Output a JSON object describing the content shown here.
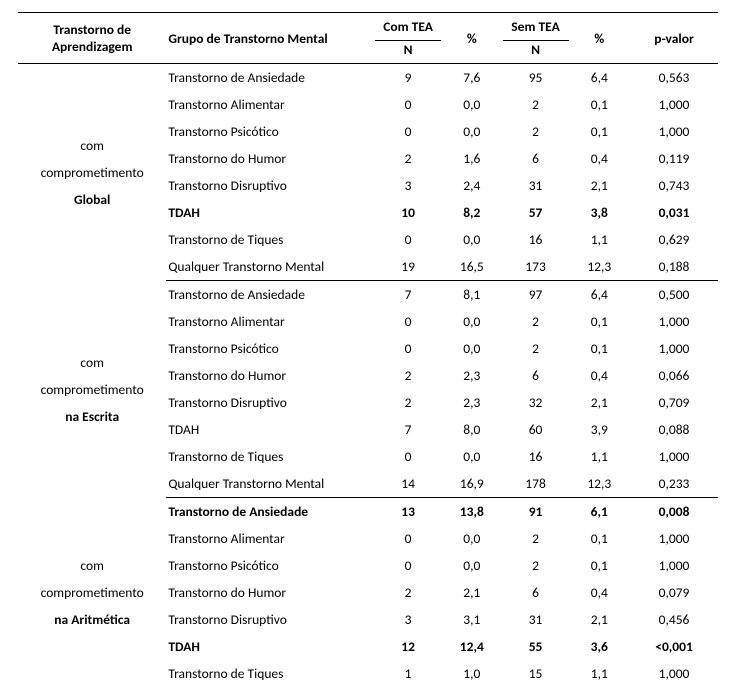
{
  "headers": {
    "col1": "Transtorno de\nAprendizagem",
    "col2": "Grupo de Transtorno\nMental",
    "col3_top": "Com\nTEA",
    "col3_sub": "N",
    "col4": "%",
    "col5_top": "Sem\nTEA",
    "col5_sub": "N",
    "col6": "%",
    "col7": "p-valor"
  },
  "sections": [
    {
      "group_label": "com\ncomprometimento\nGlobal",
      "rows": [
        {
          "label": "Transtorno de Ansiedade",
          "com_n": "9",
          "com_pct": "7,6",
          "sem_n": "95",
          "sem_pct": "6,4",
          "p": "0,563",
          "bold": false
        },
        {
          "label": "Transtorno Alimentar",
          "com_n": "0",
          "com_pct": "0,0",
          "sem_n": "2",
          "sem_pct": "0,1",
          "p": "1,000",
          "bold": false
        },
        {
          "label": "Transtorno Psicótico",
          "com_n": "0",
          "com_pct": "0,0",
          "sem_n": "2",
          "sem_pct": "0,1",
          "p": "1,000",
          "bold": false
        },
        {
          "label": "Transtorno do Humor",
          "com_n": "2",
          "com_pct": "1,6",
          "sem_n": "6",
          "sem_pct": "0,4",
          "p": "0,119",
          "bold": false
        },
        {
          "label": "Transtorno Disruptivo",
          "com_n": "3",
          "com_pct": "2,4",
          "sem_n": "31",
          "sem_pct": "2,1",
          "p": "0,743",
          "bold": false
        },
        {
          "label": "TDAH",
          "com_n": "10",
          "com_pct": "8,2",
          "sem_n": "57",
          "sem_pct": "3,8",
          "p": "0,031",
          "bold": true
        },
        {
          "label": "Transtorno de Tiques",
          "com_n": "0",
          "com_pct": "0,0",
          "sem_n": "16",
          "sem_pct": "1,1",
          "p": "0,629",
          "bold": false
        },
        {
          "label": "Qualquer Transtorno Mental",
          "com_n": "19",
          "com_pct": "16,5",
          "sem_n": "173",
          "sem_pct": "12,3",
          "p": "0,188",
          "bold": false
        }
      ]
    },
    {
      "group_label": "com\ncomprometimento\nna Escrita",
      "rows": [
        {
          "label": "Transtorno de Ansiedade",
          "com_n": "7",
          "com_pct": "8,1",
          "sem_n": "97",
          "sem_pct": "6,4",
          "p": "0,500",
          "bold": false
        },
        {
          "label": "Transtorno Alimentar",
          "com_n": "0",
          "com_pct": "0,0",
          "sem_n": "2",
          "sem_pct": "0,1",
          "p": "1,000",
          "bold": false
        },
        {
          "label": "Transtorno Psicótico",
          "com_n": "0",
          "com_pct": "0,0",
          "sem_n": "2",
          "sem_pct": "0,1",
          "p": "1,000",
          "bold": false
        },
        {
          "label": "Transtorno do Humor",
          "com_n": "2",
          "com_pct": "2,3",
          "sem_n": "6",
          "sem_pct": "0,4",
          "p": "0,066",
          "bold": false
        },
        {
          "label": "Transtorno Disruptivo",
          "com_n": "2",
          "com_pct": "2,3",
          "sem_n": "32",
          "sem_pct": "2,1",
          "p": "0,709",
          "bold": false
        },
        {
          "label": "TDAH",
          "com_n": "7",
          "com_pct": "8,0",
          "sem_n": "60",
          "sem_pct": "3,9",
          "p": "0,088",
          "bold": false
        },
        {
          "label": "Transtorno de Tiques",
          "com_n": "0",
          "com_pct": "0,0",
          "sem_n": "16",
          "sem_pct": "1,1",
          "p": "1,000",
          "bold": false
        },
        {
          "label": "Qualquer Transtorno Mental",
          "com_n": "14",
          "com_pct": "16,9",
          "sem_n": "178",
          "sem_pct": "12,3",
          "p": "0,233",
          "bold": false
        }
      ]
    },
    {
      "group_label": "com\ncomprometimento\nna Aritmética",
      "rows": [
        {
          "label": "Transtorno de Ansiedade",
          "com_n": "13",
          "com_pct": "13,8",
          "sem_n": "91",
          "sem_pct": "6,1",
          "p": "0,008",
          "bold": true
        },
        {
          "label": "Transtorno Alimentar",
          "com_n": "0",
          "com_pct": "0,0",
          "sem_n": "2",
          "sem_pct": "0,1",
          "p": "1,000",
          "bold": false
        },
        {
          "label": "Transtorno Psicótico",
          "com_n": "0",
          "com_pct": "0,0",
          "sem_n": "2",
          "sem_pct": "0,1",
          "p": "1,000",
          "bold": false
        },
        {
          "label": "Transtorno do Humor",
          "com_n": "2",
          "com_pct": "2,1",
          "sem_n": "6",
          "sem_pct": "0,4",
          "p": "0,079",
          "bold": false
        },
        {
          "label": "Transtorno Disruptivo",
          "com_n": "3",
          "com_pct": "3,1",
          "sem_n": "31",
          "sem_pct": "2,1",
          "p": "0,456",
          "bold": false
        },
        {
          "label": "TDAH",
          "com_n": "12",
          "com_pct": "12,4",
          "sem_n": "55",
          "sem_pct": "3,6",
          "p": "<0,001",
          "bold": true
        },
        {
          "label": "Transtorno de Tiques",
          "com_n": "1",
          "com_pct": "1,0",
          "sem_n": "15",
          "sem_pct": "1,1",
          "p": "1,000",
          "bold": false
        }
      ]
    }
  ]
}
